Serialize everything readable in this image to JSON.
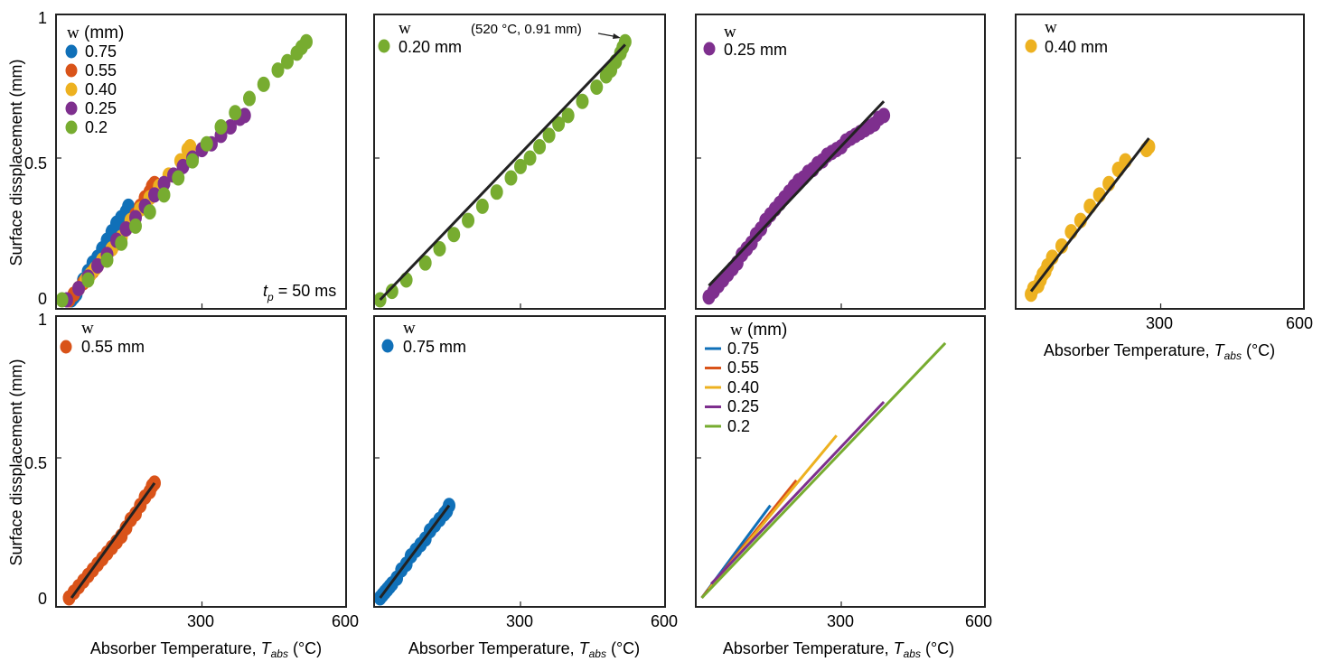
{
  "colors": {
    "w075": "#1070b8",
    "w055": "#d95319",
    "w040": "#edb120",
    "w025": "#7e2f8e",
    "w020": "#77ac30",
    "fit": "#222222",
    "frame": "#222222"
  },
  "labels": {
    "ylabel": "Surface dissplacement (mm)",
    "xlabel_main": "Absorber Temperature, ",
    "xlabel_T": "T",
    "xlabel_sub": "abs",
    "xlabel_unit": " (°C)",
    "legend_w": "w",
    "legend_mm": " (mm)",
    "tp_t": "t",
    "tp_sub": "p",
    "tp_rest": " = 50 ms",
    "annotation": "(520 °C, 0.91 mm)"
  },
  "axis": {
    "xlim": [
      0,
      600
    ],
    "ylim": [
      0,
      1
    ],
    "xticks": [
      "300",
      "600"
    ],
    "yticks": [
      "0",
      "0.5",
      "1"
    ]
  },
  "chart_data": [
    {
      "id": "all-widths",
      "type": "scatter",
      "title": "",
      "legend_title": "w (mm)",
      "legend_entries": [
        "0.75",
        "0.55",
        "0.40",
        "0.25",
        "0.2"
      ],
      "note": "tp = 50 ms",
      "series": [
        {
          "name": "0.75",
          "color_key": "w075",
          "x": [
            25,
            30,
            35,
            40,
            50,
            60,
            70,
            80,
            90,
            100,
            110,
            120,
            130,
            140,
            145
          ],
          "y": [
            0,
            0.01,
            0.02,
            0.04,
            0.07,
            0.1,
            0.13,
            0.15,
            0.18,
            0.21,
            0.24,
            0.27,
            0.29,
            0.31,
            0.33
          ]
        },
        {
          "name": "0.55",
          "color_key": "w055",
          "x": [
            20,
            30,
            40,
            50,
            60,
            70,
            80,
            90,
            100,
            110,
            120,
            130,
            140,
            150,
            160,
            170,
            180,
            190,
            195,
            200
          ],
          "y": [
            0,
            0.02,
            0.04,
            0.06,
            0.08,
            0.1,
            0.12,
            0.14,
            0.16,
            0.18,
            0.2,
            0.22,
            0.25,
            0.28,
            0.3,
            0.33,
            0.36,
            0.38,
            0.4,
            0.41
          ]
        },
        {
          "name": "0.40",
          "color_key": "w040",
          "x": [
            40,
            55,
            65,
            75,
            90,
            110,
            130,
            150,
            170,
            190,
            210,
            230,
            255,
            270,
            275
          ],
          "y": [
            0.04,
            0.07,
            0.09,
            0.11,
            0.14,
            0.18,
            0.22,
            0.28,
            0.32,
            0.36,
            0.4,
            0.44,
            0.49,
            0.53,
            0.54
          ]
        },
        {
          "name": "0.25",
          "color_key": "w025",
          "x": [
            15,
            40,
            60,
            80,
            100,
            120,
            140,
            160,
            180,
            200,
            220,
            240,
            260,
            280,
            300,
            320,
            340,
            360,
            380,
            390
          ],
          "y": [
            0,
            0.04,
            0.08,
            0.12,
            0.16,
            0.21,
            0.25,
            0.29,
            0.33,
            0.37,
            0.41,
            0.44,
            0.47,
            0.5,
            0.53,
            0.55,
            0.58,
            0.61,
            0.64,
            0.65
          ]
        },
        {
          "name": "0.2",
          "color_key": "w020",
          "x": [
            5,
            60,
            100,
            130,
            160,
            190,
            220,
            250,
            280,
            310,
            340,
            370,
            400,
            430,
            460,
            480,
            500,
            510,
            520
          ],
          "y": [
            0,
            0.07,
            0.14,
            0.2,
            0.26,
            0.31,
            0.37,
            0.43,
            0.49,
            0.55,
            0.61,
            0.66,
            0.71,
            0.76,
            0.81,
            0.84,
            0.87,
            0.89,
            0.91
          ]
        }
      ]
    },
    {
      "id": "w020",
      "type": "scatter",
      "legend_title": "w",
      "legend_entries": [
        "0.20 mm"
      ],
      "fit": {
        "x": [
          5,
          520
        ],
        "y": [
          0,
          0.9
        ]
      },
      "series": [
        {
          "name": "0.20 mm",
          "color_key": "w020",
          "x": [
            5,
            30,
            60,
            100,
            130,
            160,
            190,
            220,
            250,
            280,
            300,
            320,
            340,
            360,
            380,
            400,
            430,
            460,
            480,
            490,
            500,
            510,
            515,
            520
          ],
          "y": [
            0,
            0.03,
            0.07,
            0.13,
            0.18,
            0.23,
            0.28,
            0.33,
            0.38,
            0.43,
            0.47,
            0.5,
            0.54,
            0.58,
            0.62,
            0.65,
            0.7,
            0.75,
            0.79,
            0.81,
            0.84,
            0.87,
            0.89,
            0.91
          ]
        }
      ]
    },
    {
      "id": "w025",
      "type": "scatter",
      "legend_title": "w",
      "legend_entries": [
        "0.25 mm"
      ],
      "fit": {
        "x": [
          20,
          390
        ],
        "y": [
          0.05,
          0.7
        ]
      },
      "series": [
        {
          "name": "0.25 mm",
          "color_key": "w025",
          "x": [
            20,
            30,
            40,
            50,
            60,
            70,
            80,
            90,
            100,
            110,
            120,
            130,
            140,
            150,
            160,
            170,
            180,
            190,
            200,
            210,
            220,
            230,
            240,
            250,
            260,
            270,
            280,
            290,
            300,
            310,
            320,
            330,
            340,
            350,
            360,
            370,
            380,
            390
          ],
          "y": [
            0.01,
            0.03,
            0.05,
            0.07,
            0.09,
            0.11,
            0.13,
            0.16,
            0.18,
            0.2,
            0.23,
            0.25,
            0.28,
            0.3,
            0.32,
            0.34,
            0.36,
            0.38,
            0.4,
            0.42,
            0.43,
            0.45,
            0.46,
            0.48,
            0.49,
            0.51,
            0.52,
            0.53,
            0.54,
            0.56,
            0.57,
            0.58,
            0.59,
            0.6,
            0.61,
            0.62,
            0.64,
            0.65
          ]
        }
      ]
    },
    {
      "id": "w040",
      "type": "scatter",
      "legend_title": "w",
      "legend_entries": [
        "0.40 mm"
      ],
      "fit": {
        "x": [
          25,
          275
        ],
        "y": [
          0.03,
          0.57
        ]
      },
      "series": [
        {
          "name": "0.40 mm",
          "color_key": "w040",
          "x": [
            25,
            30,
            40,
            45,
            50,
            55,
            60,
            70,
            90,
            110,
            130,
            150,
            170,
            190,
            210,
            225,
            270,
            275
          ],
          "y": [
            0.02,
            0.04,
            0.05,
            0.07,
            0.09,
            0.1,
            0.12,
            0.15,
            0.19,
            0.24,
            0.28,
            0.33,
            0.37,
            0.41,
            0.46,
            0.49,
            0.53,
            0.54
          ]
        }
      ]
    },
    {
      "id": "w055",
      "type": "scatter",
      "legend_title": "w",
      "legend_entries": [
        "0.55 mm"
      ],
      "fit": {
        "x": [
          25,
          200
        ],
        "y": [
          0,
          0.41
        ]
      },
      "series": [
        {
          "name": "0.55 mm",
          "color_key": "w055",
          "x": [
            20,
            30,
            40,
            50,
            60,
            70,
            80,
            90,
            100,
            110,
            120,
            130,
            140,
            150,
            160,
            170,
            180,
            190,
            195,
            200
          ],
          "y": [
            0,
            0.02,
            0.04,
            0.06,
            0.08,
            0.1,
            0.12,
            0.14,
            0.16,
            0.18,
            0.2,
            0.22,
            0.25,
            0.28,
            0.3,
            0.33,
            0.36,
            0.38,
            0.4,
            0.41
          ]
        }
      ]
    },
    {
      "id": "w075",
      "type": "scatter",
      "legend_title": "w",
      "legend_entries": [
        "0.75 mm"
      ],
      "fit": {
        "x": [
          5,
          150
        ],
        "y": [
          0,
          0.33
        ]
      },
      "series": [
        {
          "name": "0.75 mm",
          "color_key": "w075",
          "x": [
            5,
            10,
            15,
            20,
            25,
            30,
            40,
            50,
            60,
            70,
            80,
            90,
            100,
            110,
            120,
            130,
            140,
            145,
            150
          ],
          "y": [
            0,
            0.01,
            0.02,
            0.03,
            0.04,
            0.05,
            0.07,
            0.1,
            0.12,
            0.15,
            0.17,
            0.19,
            0.21,
            0.24,
            0.26,
            0.28,
            0.3,
            0.31,
            0.33
          ]
        }
      ]
    },
    {
      "id": "fits",
      "type": "line",
      "legend_title": "w (mm)",
      "legend_entries": [
        "0.75",
        "0.55",
        "0.40",
        "0.25",
        "0.2"
      ],
      "series": [
        {
          "name": "0.75",
          "color_key": "w075",
          "x": [
            5,
            150
          ],
          "y": [
            0,
            0.33
          ]
        },
        {
          "name": "0.55",
          "color_key": "w055",
          "x": [
            5,
            205
          ],
          "y": [
            0,
            0.42
          ]
        },
        {
          "name": "0.40",
          "color_key": "w040",
          "x": [
            20,
            290
          ],
          "y": [
            0.03,
            0.58
          ]
        },
        {
          "name": "0.25",
          "color_key": "w025",
          "x": [
            25,
            390
          ],
          "y": [
            0.05,
            0.7
          ]
        },
        {
          "name": "0.2",
          "color_key": "w020",
          "x": [
            5,
            520
          ],
          "y": [
            0,
            0.91
          ]
        }
      ]
    }
  ]
}
